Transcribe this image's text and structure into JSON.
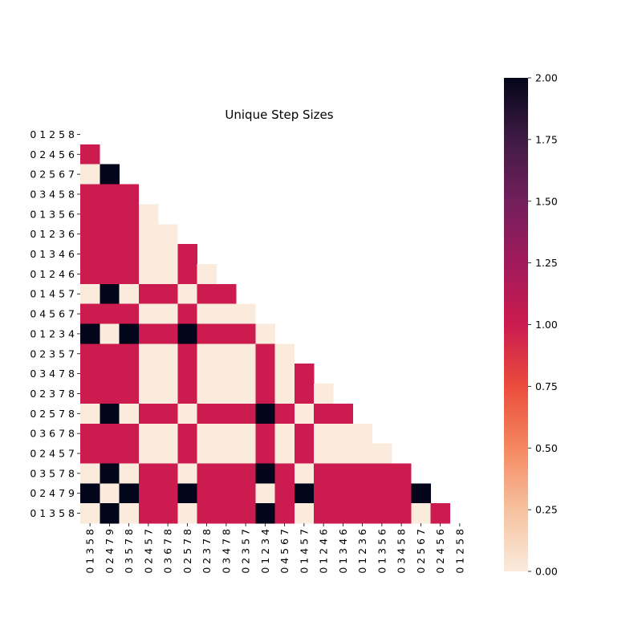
{
  "chart_data": {
    "type": "heatmap",
    "title": "Unique Step Sizes",
    "xlabel": "",
    "ylabel": "",
    "row_labels": [
      "0 1 2 5 8",
      "0 2 4 5 6",
      "0 2 5 6 7",
      "0 3 4 5 8",
      "0 1 3 5 6",
      "0 1 2 3 6",
      "0 1 3 4 6",
      "0 1 2 4 6",
      "0 1 4 5 7",
      "0 4 5 6 7",
      "0 1 2 3 4",
      "0 2 3 5 7",
      "0 3 4 7 8",
      "0 2 3 7 8",
      "0 2 5 7 8",
      "0 3 6 7 8",
      "0 2 4 5 7",
      "0 3 5 7 8",
      "0 2 4 7 9",
      "0 1 3 5 8"
    ],
    "col_labels": [
      "0 1 3 5 8",
      "0 2 4 7 9",
      "0 3 5 7 8",
      "0 2 4 5 7",
      "0 3 6 7 8",
      "0 2 5 7 8",
      "0 2 3 7 8",
      "0 3 4 7 8",
      "0 2 3 5 7",
      "0 1 2 3 4",
      "0 4 5 6 7",
      "0 1 4 5 7",
      "0 1 2 4 6",
      "0 1 3 4 6",
      "0 1 2 3 6",
      "0 1 3 5 6",
      "0 3 4 5 8",
      "0 2 5 6 7",
      "0 2 4 5 6",
      "0 1 2 5 8"
    ],
    "values": [
      [],
      [
        1
      ],
      [
        0,
        2
      ],
      [
        1,
        1,
        1
      ],
      [
        1,
        1,
        1,
        0
      ],
      [
        1,
        1,
        1,
        0,
        0
      ],
      [
        1,
        1,
        1,
        0,
        0,
        1
      ],
      [
        1,
        1,
        1,
        0,
        0,
        1,
        0
      ],
      [
        0,
        2,
        0,
        1,
        1,
        0,
        1,
        1
      ],
      [
        1,
        1,
        1,
        0,
        0,
        1,
        0,
        0,
        0
      ],
      [
        2,
        0,
        2,
        1,
        1,
        2,
        1,
        1,
        1,
        0
      ],
      [
        1,
        1,
        1,
        0,
        0,
        1,
        0,
        0,
        0,
        1,
        0
      ],
      [
        1,
        1,
        1,
        0,
        0,
        1,
        0,
        0,
        0,
        1,
        0,
        1
      ],
      [
        1,
        1,
        1,
        0,
        0,
        1,
        0,
        0,
        0,
        1,
        0,
        1,
        0
      ],
      [
        0,
        2,
        0,
        1,
        1,
        0,
        1,
        1,
        1,
        2,
        1,
        0,
        1,
        1
      ],
      [
        1,
        1,
        1,
        0,
        0,
        1,
        0,
        0,
        0,
        1,
        0,
        1,
        0,
        0,
        0
      ],
      [
        1,
        1,
        1,
        0,
        0,
        1,
        0,
        0,
        0,
        1,
        0,
        1,
        0,
        0,
        0,
        0
      ],
      [
        0,
        2,
        0,
        1,
        1,
        0,
        1,
        1,
        1,
        2,
        1,
        0,
        1,
        1,
        1,
        1,
        1
      ],
      [
        2,
        0,
        2,
        1,
        1,
        2,
        1,
        1,
        1,
        0,
        1,
        2,
        1,
        1,
        1,
        1,
        1,
        2
      ],
      [
        0,
        2,
        0,
        1,
        1,
        0,
        1,
        1,
        1,
        2,
        1,
        0,
        1,
        1,
        1,
        1,
        1,
        0,
        1
      ]
    ],
    "mask": "upper-triangle-including-diagonal",
    "vmin": 0,
    "vmax": 2,
    "colormap": "rocket_r",
    "colorbar_ticks": [
      "0.00",
      "0.25",
      "0.50",
      "0.75",
      "1.00",
      "1.25",
      "1.50",
      "1.75",
      "2.00"
    ],
    "colors": {
      "zero": "#faebdd",
      "one": "#cb1b4f",
      "two": "#03051a"
    }
  }
}
